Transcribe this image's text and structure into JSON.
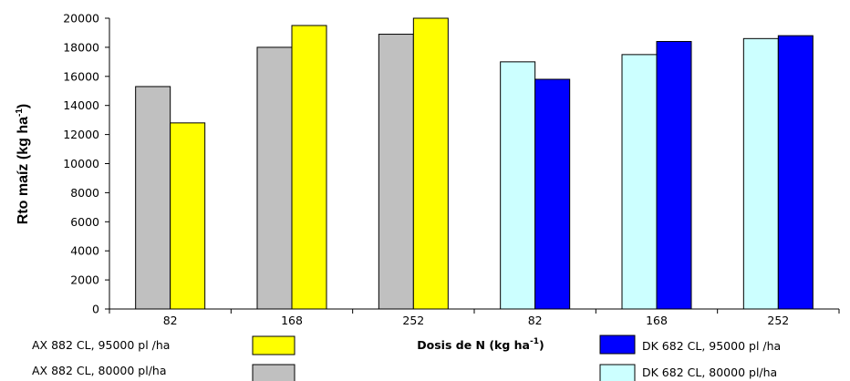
{
  "chart_data": {
    "type": "bar",
    "ylabel": "Rto maíz (kg ha",
    "ylabel_sup": "-1",
    "xlabel": "Dosis de N (kg ha",
    "xlabel_sup": "-1",
    "xlabel_end": ")",
    "ylim": [
      0,
      20000
    ],
    "yticks": [
      0,
      2000,
      4000,
      6000,
      8000,
      10000,
      12000,
      14000,
      16000,
      18000,
      20000
    ],
    "grid": false,
    "legend_placement": "bottom",
    "categories": [
      "82",
      "168",
      "252",
      "82",
      "168",
      "252"
    ],
    "series": [
      {
        "name": "AX 882 CL, 80000 pl/ha",
        "color": "#c0c0c0",
        "values": [
          15300,
          18000,
          18900,
          null,
          null,
          null
        ]
      },
      {
        "name": "AX 882 CL, 95000 pl /ha",
        "color": "#ffff00",
        "values": [
          12800,
          19500,
          20000,
          null,
          null,
          null
        ]
      },
      {
        "name": "DK 682 CL, 80000 pl/ha",
        "color": "#ccffff",
        "values": [
          null,
          null,
          null,
          17000,
          17500,
          18600
        ]
      },
      {
        "name": "DK 682 CL, 95000 pl /ha",
        "color": "#0000ff",
        "values": [
          null,
          null,
          null,
          15800,
          18400,
          18800
        ]
      }
    ],
    "legend": [
      {
        "series": 1,
        "label": "AX 882 CL, 95000 pl /ha"
      },
      {
        "series": 0,
        "label": "AX 882 CL, 80000 pl/ha"
      },
      {
        "series": 3,
        "label": "DK 682 CL, 95000 pl /ha"
      },
      {
        "series": 2,
        "label": "DK 682 CL, 80000 pl/ha"
      }
    ]
  }
}
